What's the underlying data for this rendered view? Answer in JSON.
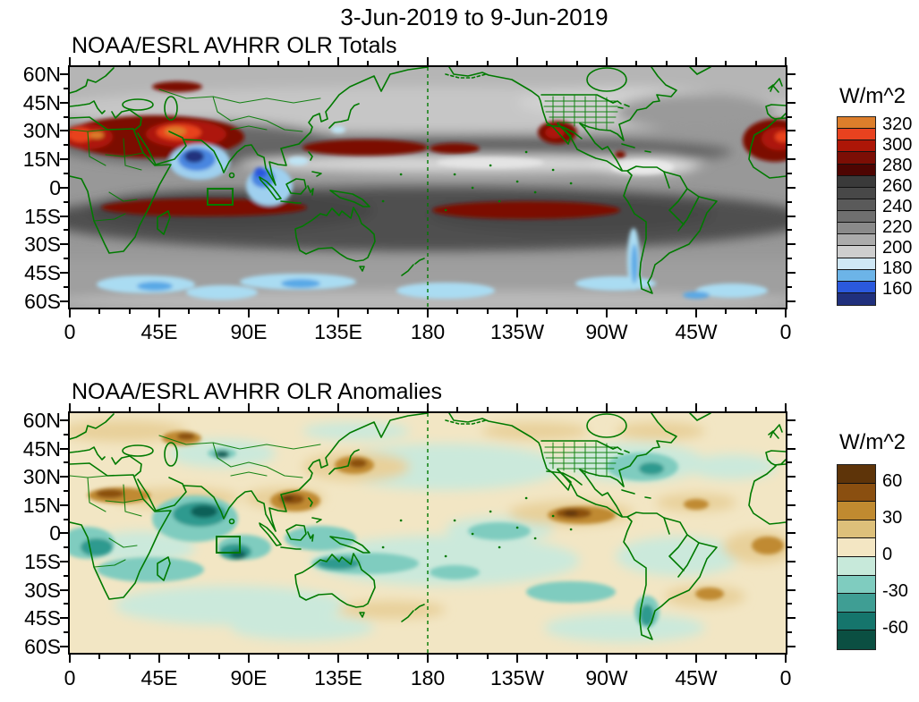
{
  "main_title": "3-Jun-2019 to 9-Jun-2019",
  "panels": [
    {
      "title": "NOAA/ESRL AVHRR OLR Totals",
      "units_label": "W/m^2",
      "lat_labels": [
        "60N",
        "45N",
        "30N",
        "15N",
        "0",
        "15S",
        "30S",
        "45S",
        "60S"
      ],
      "lon_labels": [
        "0",
        "45E",
        "90E",
        "135E",
        "180",
        "135W",
        "90W",
        "45W",
        "0"
      ],
      "colorbar": {
        "tick_labels": [
          "320",
          "300",
          "280",
          "260",
          "240",
          "220",
          "200",
          "180",
          "160"
        ],
        "colors_top_to_bottom": [
          "#dd7e2b",
          "#e8421f",
          "#ad1607",
          "#7c0e05",
          "#4e0502",
          "#3a3a3a",
          "#484848",
          "#5a5a5a",
          "#6f6f6f",
          "#8a8a8a",
          "#ababab",
          "#cecece",
          "#cfe7f5",
          "#6cb4e8",
          "#2b59dd",
          "#20307d"
        ]
      }
    },
    {
      "title": "NOAA/ESRL AVHRR OLR Anomalies",
      "units_label": "W/m^2",
      "lat_labels": [
        "60N",
        "45N",
        "30N",
        "15N",
        "0",
        "15S",
        "30S",
        "45S",
        "60S"
      ],
      "lon_labels": [
        "0",
        "45E",
        "90E",
        "135E",
        "180",
        "135W",
        "90W",
        "45W",
        "0"
      ],
      "colorbar": {
        "tick_labels": [
          "60",
          "30",
          "0",
          "-30",
          "-60"
        ],
        "colors_top_to_bottom": [
          "#5e3409",
          "#8a4f10",
          "#c08a30",
          "#ddc07a",
          "#f3e6c3",
          "#c7e9da",
          "#7fccbf",
          "#3f9e94",
          "#15756c",
          "#0b4f42"
        ]
      }
    }
  ],
  "overlays": {
    "coastline_color": "#007a00",
    "dateline": "dashed green meridian at 180",
    "index_box": "small green rectangle over the equatorial Indian Ocean (about 70E-82E, 0-10S) on both maps"
  },
  "chart_data": [
    {
      "type": "heatmap",
      "subtype": "filled_contour_world_map",
      "title": "NOAA/ESRL AVHRR OLR Totals",
      "period": "3-Jun-2019 to 9-Jun-2019",
      "units": "W/m^2",
      "projection": "cylindrical equidistant, longitudes 0E eastward to 360E, latitudes ~63S to ~63N",
      "x_tick_labels": [
        "0",
        "45E",
        "90E",
        "135E",
        "180",
        "135W",
        "90W",
        "45W",
        "0"
      ],
      "y_tick_labels": [
        "60N",
        "45N",
        "30N",
        "15N",
        "0",
        "15S",
        "30S",
        "45S",
        "60S"
      ],
      "colorbar_tick_values": [
        320,
        300,
        280,
        260,
        240,
        220,
        200,
        180,
        160
      ],
      "palette_top_to_bottom": [
        "orange",
        "orange-red",
        "red",
        "dark red",
        "maroon",
        "dark grays to light grays (mid range 200-280)",
        "pale blue",
        "light blue",
        "royal blue",
        "navy (lowest, <160)"
      ],
      "notable_features": [
        "Very high OLR (>300, red/orange) over the Sahara, Arabian Peninsula and Middle East",
        "High OLR (dark red ~300) streak near the Caspian region and across the NW subtropical Pacific near 20N",
        "High OLR blob over NW Mexico / Baja and over NW Africa at the right map edge",
        "Dark-red high-OLR bands along ~10-15S in the south Indian Ocean and central South Pacific",
        "Very low OLR (<180, blue/navy) deep convection over the Arabian Sea west of India and over Sumatra/Malaysia",
        "Light-blue low OLR along the Southern Ocean near 50-60S and along the Chilean Andes",
        "Whitish (~200) ITCZ band across the eastern equatorial Pacific and NW South America"
      ]
    },
    {
      "type": "heatmap",
      "subtype": "filled_contour_world_map",
      "title": "NOAA/ESRL AVHRR OLR Anomalies",
      "period": "3-Jun-2019 to 9-Jun-2019",
      "units": "W/m^2",
      "projection": "cylindrical equidistant, longitudes 0E eastward to 360E, latitudes ~63S to ~63N",
      "x_tick_labels": [
        "0",
        "45E",
        "90E",
        "135E",
        "180",
        "135W",
        "90W",
        "45W",
        "0"
      ],
      "y_tick_labels": [
        "60N",
        "45N",
        "30N",
        "15N",
        "0",
        "15S",
        "30S",
        "45S",
        "60S"
      ],
      "colorbar_tick_values": [
        60,
        30,
        0,
        -30,
        -60
      ],
      "contour_interval": 15,
      "palette_top_to_bottom": [
        "dark brown (>60)",
        "brown",
        "light brown",
        "tan",
        "cream (near 0 positive)",
        "pale teal (near 0 negative)",
        "light teal",
        "medium teal",
        "dark teal",
        "darkest teal (<-60)"
      ],
      "notable_features": [
        "Strong negative anomalies (dark teal, enhanced convection) over the Arabian Sea / equatorial Indian Ocean near the green index box",
        "Negative anomaly band across the south Indian Ocean, Indonesia and northern Australia",
        "Positive anomalies (brown, suppressed convection) over the Philippines / west Pacific",
        "Strong positive anomaly band over the far-east Pacific ITCZ southwest of Mexico",
        "Brown positive patches over northern Europe/Scandinavia, central Asia/China, tropical Atlantic and subtropical South America",
        "Pale teal negative patch over the eastern United States and along southern Chile"
      ]
    }
  ]
}
